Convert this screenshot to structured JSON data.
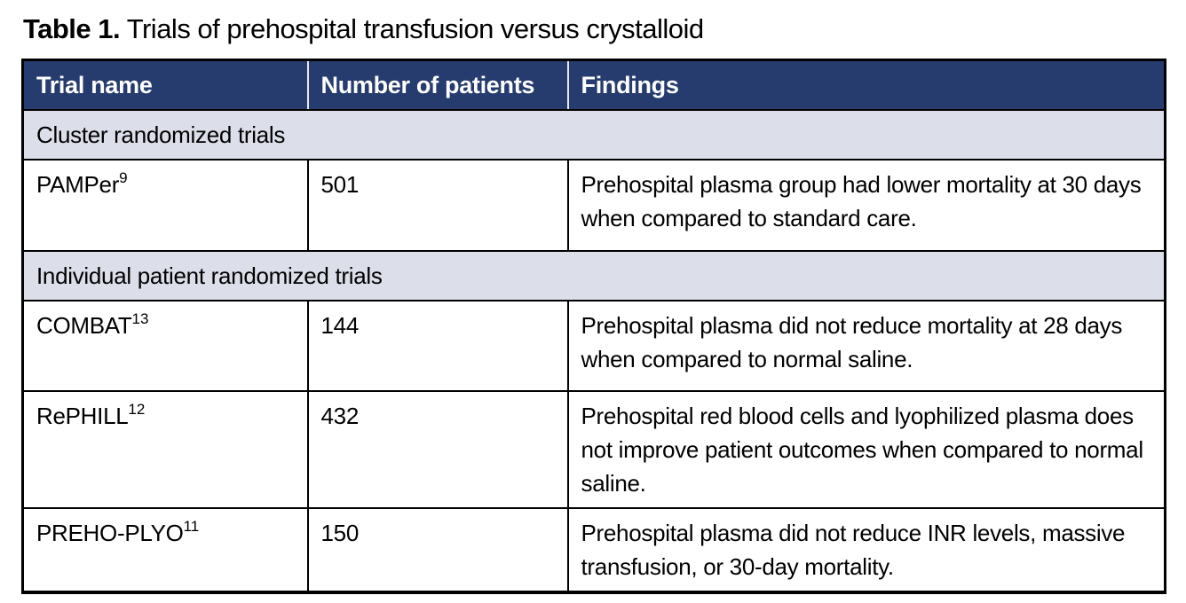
{
  "colors": {
    "header_bg": "#263b6e",
    "header_text": "#ffffff",
    "section_bg": "#dcdee9",
    "border": "#000000"
  },
  "title": {
    "label": "Table 1.",
    "text": " Trials of prehospital transfusion versus crystalloid"
  },
  "table": {
    "columns": [
      "Trial name",
      "Number of patients",
      "Findings"
    ],
    "sections": [
      {
        "label": "Cluster randomized trials",
        "rows": [
          {
            "trial": "PAMPer",
            "ref": "9",
            "patients": "501",
            "findings": "Prehospital plasma group had lower mortality at 30 days when compared to standard care."
          }
        ]
      },
      {
        "label": "Individual patient randomized trials",
        "rows": [
          {
            "trial": "COMBAT",
            "ref": "13",
            "patients": "144",
            "findings": "Prehospital plasma did not reduce mortality at 28 days when compared to normal saline."
          },
          {
            "trial": "RePHILL",
            "ref": "12",
            "patients": "432",
            "findings": "Prehospital red blood cells and lyophilized plasma does not improve patient outcomes when compared to normal saline."
          },
          {
            "trial": "PREHO-PLYO",
            "ref": "11",
            "patients": "150",
            "findings": "Prehospital plasma did not reduce INR levels, massive transfusion, or 30-day mortality."
          }
        ]
      }
    ]
  }
}
